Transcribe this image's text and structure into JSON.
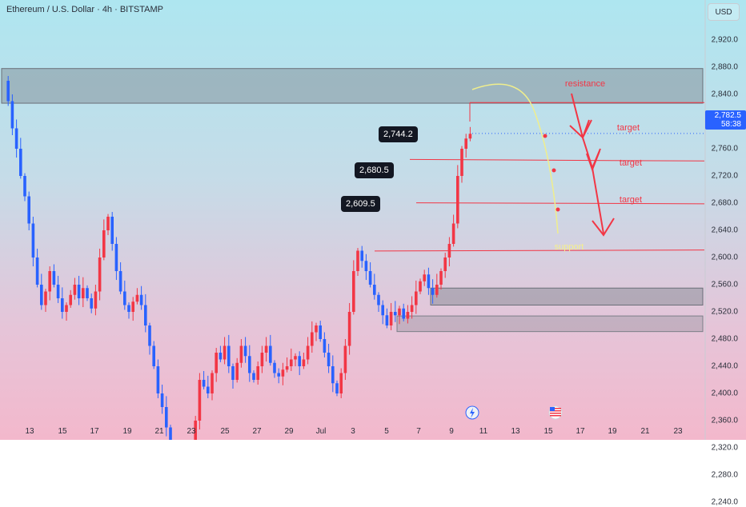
{
  "header": {
    "title": "Ethereum / U.S. Dollar · 4h · BITSTAMP",
    "currency_button": "USD"
  },
  "colors": {
    "up": "#f23645",
    "down": "#2962ff",
    "accent": "#f23645",
    "support_text": "#f5f08a",
    "arc": "#f0ee8c"
  },
  "icons": {
    "lightning": "lightning-event-icon",
    "flag": "us-flag-icon"
  },
  "chart_data": {
    "type": "candlestick",
    "title": "Ethereum / U.S. Dollar · 4h · BITSTAMP",
    "ylim": [
      2220,
      2960
    ],
    "y_ticks": [
      "2,920.0",
      "2,880.0",
      "2,840.0",
      "2,800.0",
      "2,760.0",
      "2,720.0",
      "2,680.0",
      "2,640.0",
      "2,600.0",
      "2,560.0",
      "2,520.0",
      "2,480.0",
      "2,440.0",
      "2,400.0",
      "2,360.0",
      "2,320.0",
      "2,280.0",
      "2,240.0"
    ],
    "x_ticks": [
      "13",
      "15",
      "17",
      "19",
      "21",
      "23",
      "25",
      "27",
      "29",
      "Jul",
      "3",
      "5",
      "7",
      "9",
      "11",
      "13",
      "15",
      "17",
      "19",
      "21",
      "23"
    ],
    "last_price": {
      "value": "2,782.5",
      "countdown": "58:38"
    },
    "price_tags": [
      "2,744.2",
      "2,680.5",
      "2,609.5"
    ],
    "zones": [
      {
        "name": "resistance zone",
        "low": 2827,
        "high": 2878
      },
      {
        "name": "support zone",
        "low": 2530,
        "high": 2555
      },
      {
        "name": "support band",
        "low": 2491,
        "high": 2514
      }
    ],
    "target_lines": [
      {
        "from": 2744.2,
        "to": 2742
      },
      {
        "from": 2680.5,
        "to": 2679
      },
      {
        "from": 2609.5,
        "to": 2611
      }
    ],
    "annotations": {
      "resistance": "resistance",
      "target": "target",
      "support": "support"
    },
    "grid": false,
    "legend": "none"
  }
}
